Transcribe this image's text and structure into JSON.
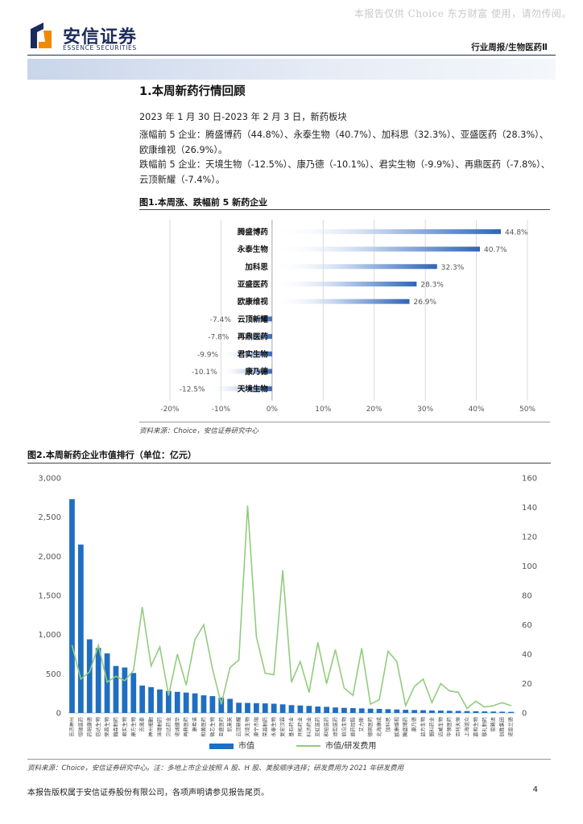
{
  "watermark": "本报告仅供 Choice 东方财富 使用，请勿传阅。",
  "brand": {
    "name_cn": "安信证券",
    "name_en": "ESSENCE SECURITIES"
  },
  "header": {
    "report_type": "行业周报/生物医药Ⅱ"
  },
  "section": {
    "title": "1.本周新药行情回顾",
    "paragraphs": [
      "2023 年 1 月 30 日-2023 年 2 月 3 日，新药板块",
      "涨幅前 5 企业：腾盛博药（44.8%）、永泰生物（40.7%）、加科思（32.3%）、亚盛医药（28.3%）、欧康维视（26.9%）。",
      "跌幅前 5 企业：天境生物（-12.5%）、康乃德（-10.1%）、君实生物（-9.9%）、再鼎医药（-7.8%）、云顶新耀（-7.4%）。"
    ]
  },
  "figure1": {
    "title": "图1.本周涨、跌幅前 5 新药企业",
    "source": "资料来源：Choice，安信证券研究中心",
    "chart_data": {
      "type": "bar",
      "orientation": "horizontal",
      "categories": [
        "腾盛博药",
        "永泰生物",
        "加科思",
        "亚盛医药",
        "欧康维视",
        "云顶新耀",
        "再鼎医药",
        "君实生物",
        "康乃德",
        "天境生物"
      ],
      "values": [
        44.8,
        40.7,
        32.3,
        28.3,
        26.9,
        -7.4,
        -7.8,
        -9.9,
        -10.1,
        -12.5
      ],
      "value_labels": [
        "44.8%",
        "40.7%",
        "32.3%",
        "28.3%",
        "26.9%",
        "-7.4%",
        "-7.8%",
        "-9.9%",
        "-10.1%",
        "-12.5%"
      ],
      "xlim": [
        -20,
        50
      ],
      "x_ticks": [
        "-20%",
        "-10%",
        "0%",
        "10%",
        "20%",
        "30%",
        "40%",
        "50%"
      ],
      "grid": true,
      "bar_color": "#2f65b8"
    }
  },
  "figure2": {
    "title": "图2.本周新药企业市值排行（单位：亿元）",
    "source": "资料来源：Choice，安信证券研究中心。注：多地上市企业按照 A 股、H 股、美股顺序选择；研发费用为 2021 年研发费用",
    "chart_data": {
      "type": "bar",
      "categories": [
        "百济神州",
        "恒瑞医药",
        "药明康德",
        "信达生物",
        "荣昌生物",
        "翰森制药",
        "君实生物",
        "康方生物",
        "百奥泰",
        "神州细胞",
        "泽璟制药",
        "贝达药业",
        "诺诚健华",
        "再鼎医药",
        "康希诺",
        "和黄医药",
        "微芯生物",
        "亚盛医药",
        "凯莱英",
        "云顶新耀",
        "天境生物",
        "康宁杰瑞",
        "荣昌制药",
        "永泰生物",
        "复宏汉霖",
        "基石药业",
        "开拓药业",
        "科济药业",
        "亚虹医药",
        "和铂医药",
        "迪哲医药",
        "前沿生物",
        "首药控股",
        "艾力斯",
        "德琪医药",
        "北海康成",
        "加科思",
        "欧康维视",
        "腾盛博药",
        "康乃德",
        "益方生物",
        "盟科药业",
        "迈威生物",
        "华领医药",
        "百利天恒",
        "上海谊众",
        "嘉和生物",
        "歌礼制药",
        "思路迪",
        "创胜集团",
        "诺思兰德"
      ],
      "series": [
        {
          "name": "市值",
          "axis": "left",
          "type": "bar",
          "color": "#1f6ec1",
          "values": [
            2730,
            2150,
            940,
            830,
            760,
            600,
            580,
            510,
            350,
            330,
            300,
            280,
            270,
            260,
            250,
            225,
            215,
            195,
            180,
            130,
            128,
            125,
            122,
            118,
            110,
            100,
            95,
            90,
            82,
            78,
            70,
            65,
            62,
            58,
            55,
            52,
            48,
            44,
            40,
            37,
            35,
            32,
            30,
            28,
            26,
            24,
            22,
            20,
            18,
            16,
            14
          ]
        },
        {
          "name": "市值/研发费用",
          "axis": "right",
          "type": "line",
          "color": "#92cc7e",
          "values": [
            46,
            23,
            28,
            46,
            21,
            25,
            22,
            29,
            72,
            32,
            45,
            12,
            40,
            19,
            50,
            60,
            30,
            6,
            31,
            36,
            141,
            52,
            27,
            26,
            97,
            21,
            35,
            14,
            48,
            20,
            43,
            17,
            12,
            44,
            6,
            9,
            42,
            35,
            5,
            18,
            23,
            7,
            20,
            15,
            14,
            3,
            8,
            4,
            5,
            7,
            5
          ]
        }
      ],
      "ylim_left": [
        0,
        3000
      ],
      "ylim_right": [
        0,
        160
      ],
      "y_ticks_left": [
        "0",
        "500",
        "1,000",
        "1,500",
        "2,000",
        "2,500",
        "3,000"
      ],
      "y_ticks_right": [
        "0",
        "20",
        "40",
        "60",
        "80",
        "100",
        "120",
        "140",
        "160"
      ],
      "legend": "bottom",
      "grid": false
    }
  },
  "footer": {
    "disclaimer": "本报告版权属于安信证券股份有限公司，各项声明请参见报告尾页。",
    "page": "4"
  }
}
